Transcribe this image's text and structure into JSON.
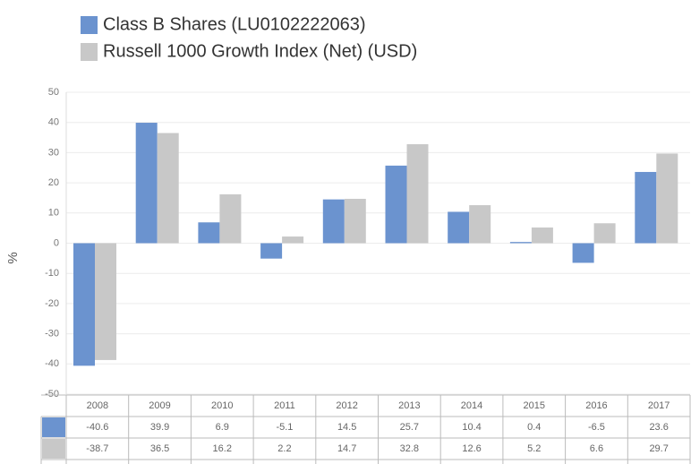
{
  "chart_data": {
    "type": "bar",
    "ylabel": "%",
    "categories": [
      "2008",
      "2009",
      "2010",
      "2011",
      "2012",
      "2013",
      "2014",
      "2015",
      "2016",
      "2017"
    ],
    "series": [
      {
        "name": "Class B Shares (LU0102222063)",
        "color": "#6b93cf",
        "values": [
          -40.6,
          39.9,
          6.9,
          -5.1,
          14.5,
          25.7,
          10.4,
          0.4,
          -6.5,
          23.6
        ]
      },
      {
        "name": "Russell 1000 Growth Index (Net) (USD)",
        "color": "#c8c8c8",
        "values": [
          -38.7,
          36.5,
          16.2,
          2.2,
          14.7,
          32.8,
          12.6,
          5.2,
          6.6,
          29.7
        ]
      }
    ],
    "ylim": [
      -50,
      50
    ],
    "yticks": [
      -50,
      -40,
      -30,
      -20,
      -10,
      0,
      10,
      20,
      30,
      40,
      50
    ],
    "grid": true,
    "legend": "top"
  }
}
